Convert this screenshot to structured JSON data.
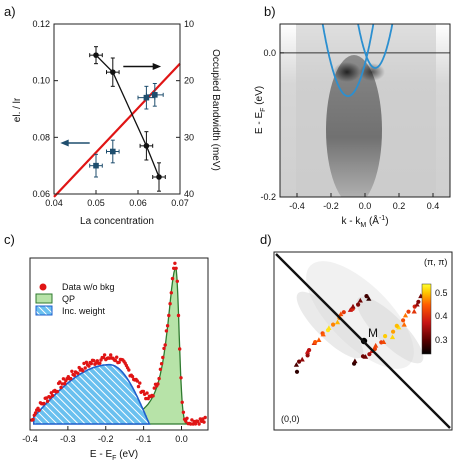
{
  "panel_labels": {
    "a": "a)",
    "b": "b)",
    "c": "c)",
    "d": "d)"
  },
  "chart_data": [
    {
      "id": "a",
      "type": "scatter",
      "xlabel": "La concentration",
      "ylabel": "el. / lr",
      "y2label": "Occupied Bandwidth (meV)",
      "xlim": [
        0.04,
        0.07
      ],
      "ylim": [
        0.06,
        0.12
      ],
      "y2lim": [
        10,
        40
      ],
      "y2_inverted": true,
      "xticks": [
        "0.04",
        "0.05",
        "0.06",
        "0.07"
      ],
      "yticks": [
        "0.06",
        "0.08",
        "0.10",
        "0.12"
      ],
      "y2ticks": [
        "10",
        "20",
        "30",
        "40"
      ],
      "series": [
        {
          "axis": "right",
          "color": "#111111",
          "marker": "circle",
          "connected": true,
          "x": [
            0.05,
            0.054,
            0.062,
            0.065
          ],
          "y": [
            15.5,
            18.5,
            31.5,
            37.0
          ],
          "xerr": [
            0.0015,
            0.0015,
            0.0015,
            0.0015
          ],
          "yerr": [
            1.5,
            2.5,
            2.5,
            2.5
          ]
        },
        {
          "axis": "left",
          "color": "#1f4e6e",
          "marker": "square",
          "connected": false,
          "x": [
            0.05,
            0.054,
            0.062,
            0.064
          ],
          "y": [
            0.07,
            0.075,
            0.094,
            0.095
          ],
          "xerr": [
            0.0015,
            0.0015,
            0.002,
            0.002
          ],
          "yerr": [
            0.004,
            0.004,
            0.004,
            0.004
          ]
        }
      ],
      "fit_line": {
        "color": "#e01515",
        "x": [
          0.04,
          0.07
        ],
        "y": [
          0.059,
          0.106
        ]
      },
      "arrows": [
        {
          "direction": "left",
          "color": "#1f4e6e"
        },
        {
          "direction": "right",
          "color": "#111111"
        }
      ]
    },
    {
      "id": "b",
      "type": "heatmap",
      "xlabel": "k - k",
      "xlabel_sub": "M",
      "xlabel_unit": "(Å",
      "xlabel_unit_sup": "-1",
      "xlabel_unit_end": ")",
      "ylabel": "E - E",
      "ylabel_sub": "F",
      "ylabel_unit": " (eV)",
      "xlim": [
        -0.5,
        0.5
      ],
      "ylim": [
        -0.2,
        0.04
      ],
      "xticks": [
        "-0.4",
        "-0.2",
        "0.0",
        "0.2",
        "0.4"
      ],
      "yticks": [
        "0.0",
        "-0.2"
      ],
      "colormap": "greys",
      "fermi_level": 0.0,
      "bands": [
        {
          "color": "#2b8fd0",
          "center": -0.1,
          "bottom": -0.06,
          "curvature": 4.5
        },
        {
          "color": "#2b8fd0",
          "center": 0.06,
          "bottom": -0.021,
          "curvature": 6.0
        }
      ]
    },
    {
      "id": "c",
      "type": "area",
      "xlabel": "E - E",
      "xlabel_sub": "F",
      "xlabel_unit": " (eV)",
      "xlim": [
        -0.4,
        0.07
      ],
      "xticks": [
        "-0.4",
        "-0.3",
        "-0.2",
        "-0.1",
        "0.0"
      ],
      "legend_position": "top-left",
      "series": [
        {
          "name": "Data w/o bkg",
          "type": "scatter",
          "color": "#e01515"
        },
        {
          "name": "QP",
          "type": "area",
          "color": "#b7e3a8",
          "edge": "#2f7a2f"
        },
        {
          "name": "Inc. weight",
          "type": "area",
          "color": "#6ac0ef",
          "edge": "#1f5fcc",
          "hatch": true
        }
      ],
      "qp": {
        "center": -0.015,
        "amplitude": 1.0
      },
      "incoherent": {
        "center": -0.19,
        "amplitude": 0.38,
        "left_edge": -0.39,
        "right_edge": -0.085
      }
    },
    {
      "id": "d",
      "type": "scatter",
      "corner_labels": {
        "origin": "(0,0)",
        "corner": "(π, π)",
        "center": "M"
      },
      "colorbar": {
        "min": 0.25,
        "max": 0.55,
        "ticks": [
          "0.5",
          "0.4",
          "0.3"
        ],
        "stops": [
          "#000000",
          "#5a0000",
          "#c81414",
          "#ff5a00",
          "#ffc800",
          "#ffff30"
        ]
      },
      "markers": [
        "circle",
        "triangle"
      ]
    }
  ]
}
